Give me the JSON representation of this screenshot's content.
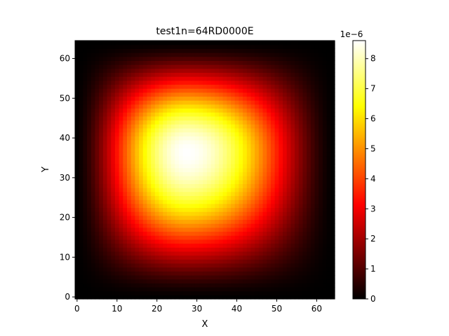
{
  "chart_data": {
    "type": "heatmap",
    "title": "test1n=64RD0000E",
    "xlabel": "X",
    "ylabel": "Y",
    "grid": false,
    "n": 64,
    "xlim": [
      -0.5,
      64.5
    ],
    "ylim": [
      -0.5,
      64.5
    ],
    "xticks": [
      0,
      10,
      20,
      30,
      40,
      50,
      60
    ],
    "yticks": [
      0,
      10,
      20,
      30,
      40,
      50,
      60
    ],
    "colormap": "hot",
    "colormap_stops": [
      "#000000",
      "#ff0000",
      "#ffff00",
      "#ffffff"
    ],
    "colorbar": {
      "min": 0,
      "max": 8.6,
      "ticks": [
        0,
        1,
        2,
        3,
        4,
        5,
        6,
        7,
        8
      ],
      "offset_label": "1e−6"
    },
    "field": {
      "description_of_values": "approximate smooth bump; peak value in colorbar units",
      "peak_value": 8.6,
      "peak_x": 28,
      "peak_y": 37
    }
  }
}
